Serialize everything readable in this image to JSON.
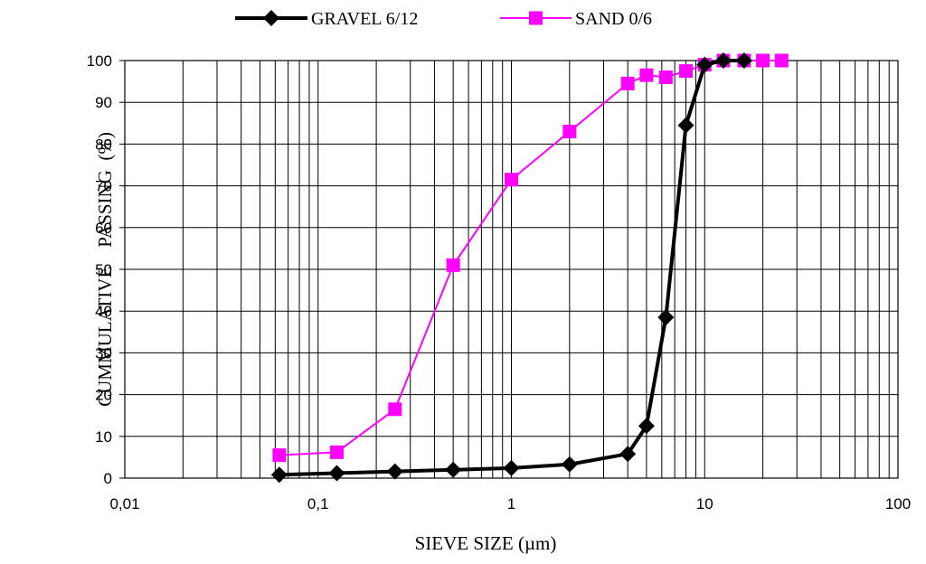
{
  "chart_data": {
    "type": "line",
    "xlabel": "SIEVE SIZE (µm)",
    "ylabel": "CUMMULATIVE    PASSING  (%)",
    "x_scale": "log",
    "xlim": [
      0.01,
      100
    ],
    "ylim": [
      0,
      100
    ],
    "x_tick_labels": [
      "0,01",
      "0,1",
      "1",
      "10",
      "100"
    ],
    "y_tick_labels": [
      "0",
      "10",
      "20",
      "30",
      "40",
      "50",
      "60",
      "70",
      "80",
      "90",
      "100"
    ],
    "grid": true,
    "legend_position": "top",
    "series": [
      {
        "name": "GRAVEL 6/12",
        "color": "#000000",
        "marker": "diamond",
        "x": [
          0.063,
          0.125,
          0.25,
          0.5,
          1,
          2,
          4,
          5,
          6.3,
          8,
          10,
          12.5,
          16
        ],
        "y": [
          0.8,
          1.2,
          1.6,
          2.0,
          2.4,
          3.3,
          5.8,
          12.5,
          38.5,
          84.5,
          99.0,
          100,
          100
        ]
      },
      {
        "name": "SAND 0/6",
        "color": "#ff00ff",
        "marker": "square",
        "x": [
          0.063,
          0.125,
          0.25,
          0.5,
          1,
          2,
          4,
          5,
          6.3,
          8,
          10,
          12.5,
          16,
          20,
          25
        ],
        "y": [
          5.5,
          6.2,
          16.5,
          51.0,
          71.5,
          83.0,
          94.5,
          96.5,
          96.0,
          97.5,
          99.0,
          100,
          100,
          100,
          100
        ]
      }
    ]
  }
}
